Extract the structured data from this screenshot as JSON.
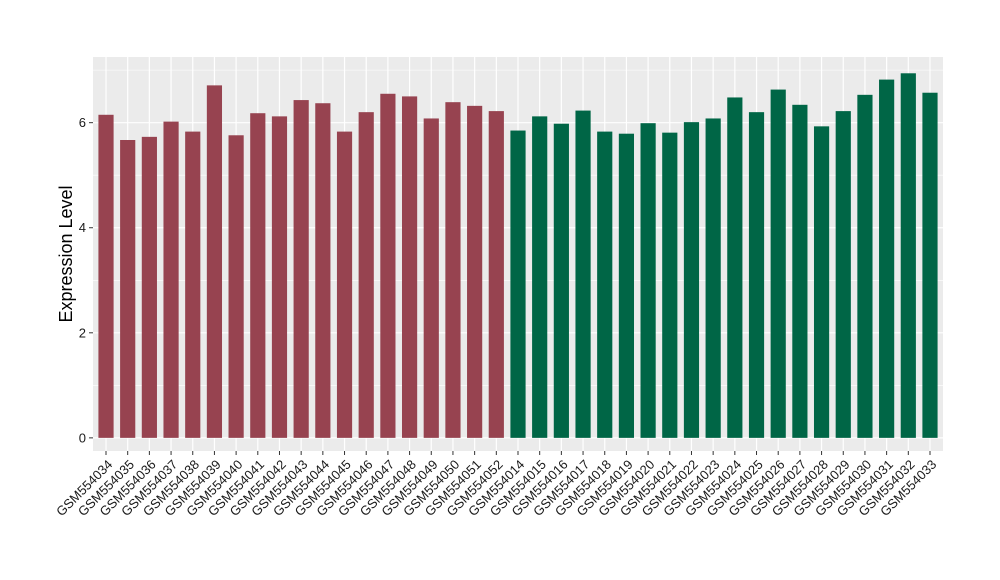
{
  "chart_data": {
    "type": "bar",
    "title": "",
    "xlabel": "",
    "ylabel": "Expression Level",
    "ylim": [
      -0.25,
      7.25
    ],
    "yticks": [
      0,
      2,
      4,
      6
    ],
    "grid": true,
    "legend": "none",
    "categories": [
      "GSM554034",
      "GSM554035",
      "GSM554036",
      "GSM554037",
      "GSM554038",
      "GSM554039",
      "GSM554040",
      "GSM554041",
      "GSM554042",
      "GSM554043",
      "GSM554044",
      "GSM554045",
      "GSM554046",
      "GSM554047",
      "GSM554048",
      "GSM554049",
      "GSM554050",
      "GSM554051",
      "GSM554052",
      "GSM554014",
      "GSM554015",
      "GSM554016",
      "GSM554017",
      "GSM554018",
      "GSM554019",
      "GSM554020",
      "GSM554021",
      "GSM554022",
      "GSM554023",
      "GSM554024",
      "GSM554025",
      "GSM554026",
      "GSM554027",
      "GSM554028",
      "GSM554029",
      "GSM554030",
      "GSM554031",
      "GSM554032",
      "GSM554033"
    ],
    "values": [
      6.15,
      5.67,
      5.73,
      6.02,
      5.83,
      6.71,
      5.76,
      6.18,
      6.12,
      6.43,
      6.37,
      5.83,
      6.2,
      6.55,
      6.5,
      6.08,
      6.39,
      6.32,
      6.22,
      5.85,
      6.12,
      5.98,
      6.23,
      5.83,
      5.79,
      5.99,
      5.81,
      6.01,
      6.08,
      6.48,
      6.2,
      6.63,
      6.34,
      5.93,
      6.22,
      6.53,
      6.82,
      6.94,
      6.57
    ],
    "group_sizes": [
      19,
      20
    ],
    "group_colors": [
      "#974350",
      "#006646"
    ],
    "panel_background": "#ebebeb",
    "grid_color": "#ffffff"
  }
}
